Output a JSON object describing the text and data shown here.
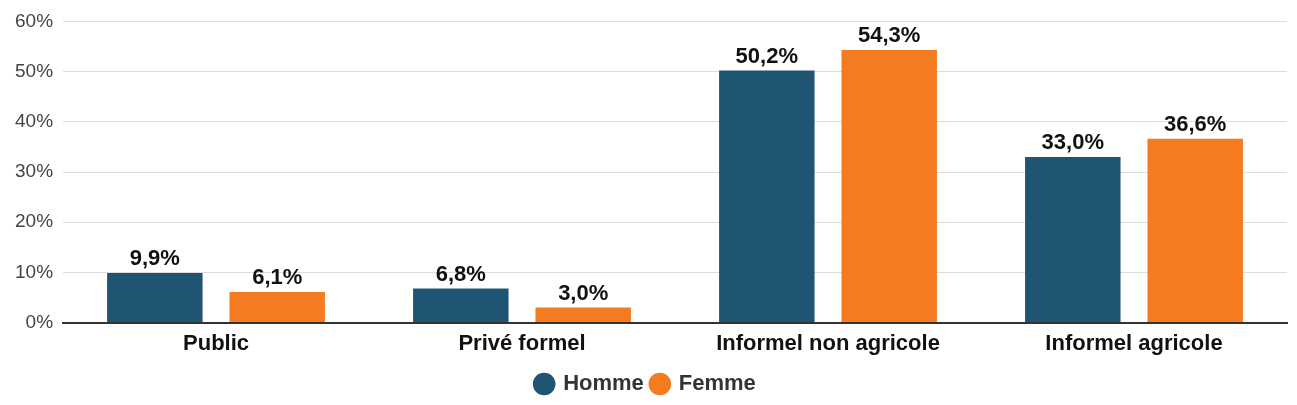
{
  "chart_data": {
    "type": "bar",
    "categories": [
      "Public",
      "Privé formel",
      "Informel non agricole",
      "Informel agricole"
    ],
    "series": [
      {
        "name": "Homme",
        "color": "#1f5473",
        "values": [
          9.9,
          6.8,
          50.2,
          33.0
        ],
        "value_labels": [
          "9,9%",
          "6,8%",
          "50,2%",
          "33,0%"
        ]
      },
      {
        "name": "Femme",
        "color": "#f47b20",
        "values": [
          6.1,
          3.0,
          54.3,
          36.6
        ],
        "value_labels": [
          "6,1%",
          "3,0%",
          "54,3%",
          "36,6%"
        ]
      }
    ],
    "ylim": [
      0,
      60
    ],
    "yticks": [
      {
        "value": 0,
        "label": "0%"
      },
      {
        "value": 10,
        "label": "10%"
      },
      {
        "value": 20,
        "label": "20%"
      },
      {
        "value": 30,
        "label": "30%"
      },
      {
        "value": 40,
        "label": "40%"
      },
      {
        "value": 50,
        "label": "50%"
      },
      {
        "value": 60,
        "label": "60%"
      }
    ],
    "grid": "y",
    "legend": "bottom"
  }
}
